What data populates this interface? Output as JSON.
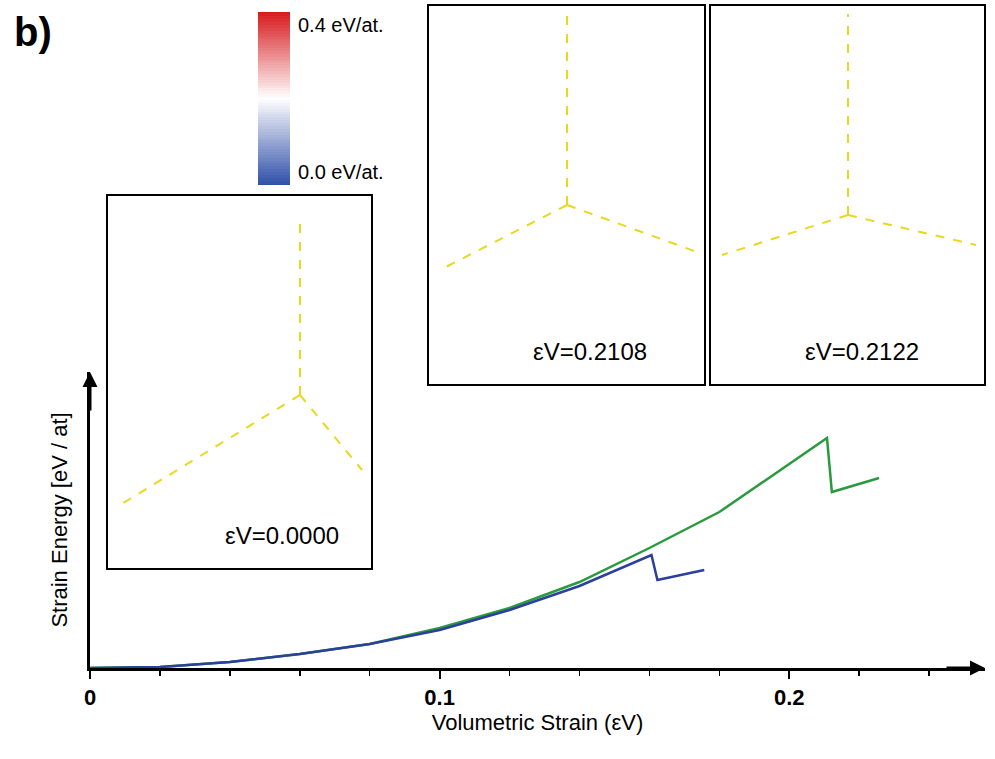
{
  "chart_data": {
    "type": "line",
    "panel": "b)",
    "x_label": "Volumetric Strain (εV)",
    "y_label": "Strain Energy [eV / at]",
    "xlim": [
      0,
      0.256
    ],
    "xticks": [
      0,
      {
        "value": 0.1,
        "label": "0.1"
      },
      {
        "value": 0.2,
        "label": "0.2"
      }
    ],
    "ylim": [
      0,
      1.48
    ],
    "tick_labels": "x",
    "grid": false,
    "series": [
      {
        "color": "#2a9a3e",
        "x": [
          0,
          0.02,
          0.04,
          0.06,
          0.08,
          0.1,
          0.12,
          0.14,
          0.16,
          0.18,
          0.2,
          0.2108,
          0.2122,
          0.2257
        ],
        "values": [
          0,
          0.005,
          0.03,
          0.07,
          0.12,
          0.2,
          0.3,
          0.43,
          0.6,
          0.78,
          1.02,
          1.15,
          0.88,
          0.95
        ]
      },
      {
        "color": "#2b3f9c",
        "x": [
          0,
          0.02,
          0.04,
          0.06,
          0.08,
          0.1,
          0.12,
          0.14,
          0.1606,
          0.1623,
          0.1757
        ],
        "values": [
          0,
          0.005,
          0.03,
          0.07,
          0.12,
          0.19,
          0.29,
          0.41,
          0.565,
          0.44,
          0.49
        ]
      }
    ],
    "colorbar": {
      "range": [
        0,
        0.4
      ],
      "ticks": [
        {
          "value": 0.4,
          "label": "0.4 eV/at."
        },
        {
          "value": 0,
          "label": "0.0 eV/at."
        }
      ]
    },
    "insets": [
      "εV=0.0000",
      "εV=0.2108",
      "εV=0.2122"
    ]
  }
}
